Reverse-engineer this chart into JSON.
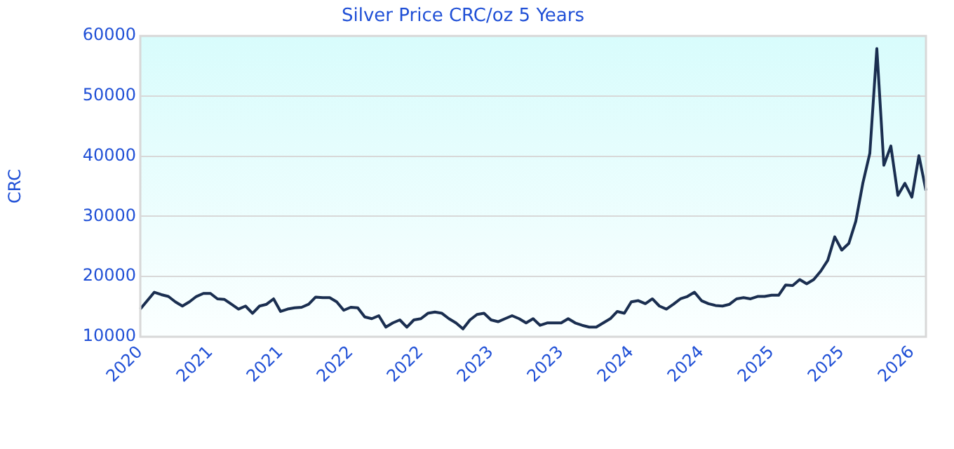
{
  "chart_data": {
    "type": "line",
    "title": "Silver Price CRC/oz 5 Years",
    "ylabel": "CRC",
    "categories": [
      "2020",
      null,
      null,
      null,
      null,
      null,
      null,
      null,
      null,
      null,
      "2021",
      null,
      null,
      null,
      null,
      null,
      null,
      null,
      null,
      null,
      "2021",
      null,
      null,
      null,
      null,
      null,
      null,
      null,
      null,
      null,
      "2022",
      null,
      null,
      null,
      null,
      null,
      null,
      null,
      null,
      null,
      "2022",
      null,
      null,
      null,
      null,
      null,
      null,
      null,
      null,
      null,
      "2023",
      null,
      null,
      null,
      null,
      null,
      null,
      null,
      null,
      null,
      "2023",
      null,
      null,
      null,
      null,
      null,
      null,
      null,
      null,
      null,
      "2024",
      null,
      null,
      null,
      null,
      null,
      null,
      null,
      null,
      null,
      "2024",
      null,
      null,
      null,
      null,
      null,
      null,
      null,
      null,
      null,
      "2025",
      null,
      null,
      null,
      null,
      null,
      null,
      null,
      null,
      null,
      "2025",
      null,
      null,
      null,
      null,
      null,
      null,
      null,
      null,
      null,
      "2026",
      null,
      null
    ],
    "series": [
      {
        "color": "#1a2e50",
        "values": [
          14600,
          16000,
          17400,
          17000,
          16700,
          15800,
          15100,
          15800,
          16700,
          17200,
          17200,
          16300,
          16200,
          15400,
          14600,
          15100,
          13900,
          15100,
          15400,
          16300,
          14200,
          14600,
          14800,
          14900,
          15400,
          16600,
          16500,
          16500,
          15800,
          14400,
          14900,
          14800,
          13300,
          13000,
          13500,
          11600,
          12300,
          12800,
          11600,
          12800,
          13000,
          13900,
          14100,
          13900,
          13000,
          12300,
          11300,
          12800,
          13700,
          13900,
          12800,
          12500,
          13000,
          13500,
          13000,
          12300,
          13000,
          11900,
          12300,
          12300,
          12300,
          13000,
          12300,
          11900,
          11600,
          11600,
          12300,
          13000,
          14200,
          13900,
          15800,
          16000,
          15500,
          16300,
          15100,
          14600,
          15400,
          16300,
          16700,
          17400,
          16000,
          15500,
          15200,
          15100,
          15400,
          16300,
          16500,
          16300,
          16700,
          16700,
          16900,
          16900,
          18600,
          18500,
          19500,
          18800,
          19500,
          20900,
          22700,
          26600,
          24400,
          25500,
          29200,
          35500,
          40500,
          57900,
          38500,
          41700,
          33500,
          35500,
          33200,
          40100,
          34300
        ]
      }
    ],
    "ylim": [
      10000,
      60000
    ],
    "yticks": [
      10000,
      20000,
      30000,
      40000,
      50000,
      60000
    ],
    "grid": "y",
    "legend": false,
    "marker": "none",
    "line_style": "solid"
  }
}
